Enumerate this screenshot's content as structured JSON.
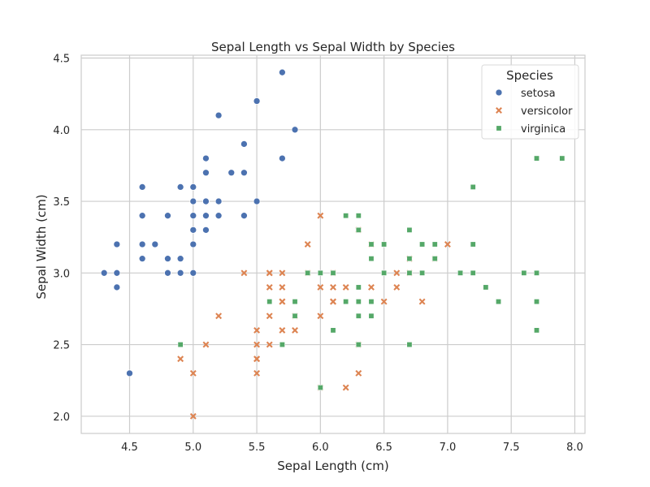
{
  "chart_data": {
    "type": "scatter",
    "title": "Sepal Length vs Sepal Width by Species",
    "xlabel": "Sepal Length (cm)",
    "ylabel": "Sepal Width (cm)",
    "xlim": [
      4.12,
      8.08
    ],
    "ylim": [
      1.88,
      4.52
    ],
    "xticks": [
      4.5,
      5.0,
      5.5,
      6.0,
      6.5,
      7.0,
      7.5,
      8.0
    ],
    "yticks": [
      2.0,
      2.5,
      3.0,
      3.5,
      4.0,
      4.5
    ],
    "xtick_labels": [
      "4.5",
      "5.0",
      "5.5",
      "6.0",
      "6.5",
      "7.0",
      "7.5",
      "8.0"
    ],
    "ytick_labels": [
      "2.0",
      "2.5",
      "3.0",
      "3.5",
      "4.0",
      "4.5"
    ],
    "grid": true,
    "legend": {
      "title": "Species",
      "position": "top-right"
    },
    "series": [
      {
        "name": "setosa",
        "color": "#4c72b0",
        "marker": "circle",
        "points": [
          [
            5.1,
            3.5
          ],
          [
            4.9,
            3.0
          ],
          [
            4.7,
            3.2
          ],
          [
            4.6,
            3.1
          ],
          [
            5.0,
            3.6
          ],
          [
            5.4,
            3.9
          ],
          [
            4.6,
            3.4
          ],
          [
            5.0,
            3.4
          ],
          [
            4.4,
            2.9
          ],
          [
            4.9,
            3.1
          ],
          [
            5.4,
            3.7
          ],
          [
            4.8,
            3.4
          ],
          [
            4.8,
            3.0
          ],
          [
            4.3,
            3.0
          ],
          [
            5.8,
            4.0
          ],
          [
            5.7,
            4.4
          ],
          [
            5.4,
            3.9
          ],
          [
            5.1,
            3.5
          ],
          [
            5.7,
            3.8
          ],
          [
            5.1,
            3.8
          ],
          [
            5.4,
            3.4
          ],
          [
            5.1,
            3.7
          ],
          [
            4.6,
            3.6
          ],
          [
            5.1,
            3.3
          ],
          [
            4.8,
            3.4
          ],
          [
            5.0,
            3.0
          ],
          [
            5.0,
            3.4
          ],
          [
            5.2,
            3.5
          ],
          [
            5.2,
            3.4
          ],
          [
            4.7,
            3.2
          ],
          [
            4.8,
            3.1
          ],
          [
            5.4,
            3.4
          ],
          [
            5.2,
            4.1
          ],
          [
            5.5,
            4.2
          ],
          [
            4.9,
            3.1
          ],
          [
            5.0,
            3.2
          ],
          [
            5.5,
            3.5
          ],
          [
            4.9,
            3.6
          ],
          [
            4.4,
            3.0
          ],
          [
            5.1,
            3.4
          ],
          [
            5.0,
            3.5
          ],
          [
            4.5,
            2.3
          ],
          [
            4.4,
            3.2
          ],
          [
            5.0,
            3.5
          ],
          [
            5.1,
            3.8
          ],
          [
            4.8,
            3.0
          ],
          [
            5.1,
            3.8
          ],
          [
            4.6,
            3.2
          ],
          [
            5.3,
            3.7
          ],
          [
            5.0,
            3.3
          ]
        ]
      },
      {
        "name": "versicolor",
        "color": "#dd8452",
        "marker": "x",
        "points": [
          [
            7.0,
            3.2
          ],
          [
            6.4,
            3.2
          ],
          [
            6.9,
            3.1
          ],
          [
            5.5,
            2.3
          ],
          [
            6.5,
            2.8
          ],
          [
            5.7,
            2.8
          ],
          [
            6.3,
            3.3
          ],
          [
            4.9,
            2.4
          ],
          [
            6.6,
            2.9
          ],
          [
            5.2,
            2.7
          ],
          [
            5.0,
            2.0
          ],
          [
            5.9,
            3.0
          ],
          [
            6.0,
            2.2
          ],
          [
            6.1,
            2.9
          ],
          [
            5.6,
            2.9
          ],
          [
            6.7,
            3.1
          ],
          [
            5.6,
            3.0
          ],
          [
            5.8,
            2.7
          ],
          [
            6.2,
            2.2
          ],
          [
            5.6,
            2.5
          ],
          [
            5.9,
            3.2
          ],
          [
            6.1,
            2.8
          ],
          [
            6.3,
            2.5
          ],
          [
            6.1,
            2.8
          ],
          [
            6.4,
            2.9
          ],
          [
            6.6,
            3.0
          ],
          [
            6.8,
            2.8
          ],
          [
            6.7,
            3.0
          ],
          [
            6.0,
            2.9
          ],
          [
            5.7,
            2.6
          ],
          [
            5.5,
            2.4
          ],
          [
            5.5,
            2.4
          ],
          [
            5.8,
            2.7
          ],
          [
            6.0,
            2.7
          ],
          [
            5.4,
            3.0
          ],
          [
            6.0,
            3.4
          ],
          [
            6.7,
            3.1
          ],
          [
            6.3,
            2.3
          ],
          [
            5.6,
            3.0
          ],
          [
            5.5,
            2.5
          ],
          [
            5.5,
            2.6
          ],
          [
            6.1,
            3.0
          ],
          [
            5.8,
            2.6
          ],
          [
            5.0,
            2.3
          ],
          [
            5.6,
            2.7
          ],
          [
            5.7,
            3.0
          ],
          [
            5.7,
            2.9
          ],
          [
            6.2,
            2.9
          ],
          [
            5.1,
            2.5
          ],
          [
            5.7,
            2.8
          ]
        ]
      },
      {
        "name": "virginica",
        "color": "#55a868",
        "marker": "square",
        "points": [
          [
            6.3,
            3.3
          ],
          [
            5.8,
            2.7
          ],
          [
            7.1,
            3.0
          ],
          [
            6.3,
            2.9
          ],
          [
            6.5,
            3.0
          ],
          [
            7.6,
            3.0
          ],
          [
            4.9,
            2.5
          ],
          [
            7.3,
            2.9
          ],
          [
            6.7,
            2.5
          ],
          [
            7.2,
            3.6
          ],
          [
            6.5,
            3.2
          ],
          [
            6.4,
            2.7
          ],
          [
            6.8,
            3.0
          ],
          [
            5.7,
            2.5
          ],
          [
            5.8,
            2.8
          ],
          [
            6.4,
            3.2
          ],
          [
            6.5,
            3.0
          ],
          [
            7.7,
            3.8
          ],
          [
            7.7,
            2.6
          ],
          [
            6.0,
            2.2
          ],
          [
            6.9,
            3.2
          ],
          [
            5.6,
            2.8
          ],
          [
            7.7,
            2.8
          ],
          [
            6.3,
            2.7
          ],
          [
            6.7,
            3.3
          ],
          [
            7.2,
            3.2
          ],
          [
            6.2,
            2.8
          ],
          [
            6.1,
            3.0
          ],
          [
            6.4,
            2.8
          ],
          [
            7.2,
            3.0
          ],
          [
            7.4,
            2.8
          ],
          [
            7.9,
            3.8
          ],
          [
            6.4,
            2.8
          ],
          [
            6.3,
            2.8
          ],
          [
            6.1,
            2.6
          ],
          [
            7.7,
            3.0
          ],
          [
            6.3,
            3.4
          ],
          [
            6.4,
            3.1
          ],
          [
            6.0,
            3.0
          ],
          [
            6.9,
            3.1
          ],
          [
            6.7,
            3.1
          ],
          [
            6.9,
            3.1
          ],
          [
            5.8,
            2.7
          ],
          [
            6.8,
            3.2
          ],
          [
            6.7,
            3.3
          ],
          [
            6.7,
            3.0
          ],
          [
            6.3,
            2.5
          ],
          [
            6.5,
            3.0
          ],
          [
            6.2,
            3.4
          ],
          [
            5.9,
            3.0
          ]
        ]
      }
    ]
  }
}
